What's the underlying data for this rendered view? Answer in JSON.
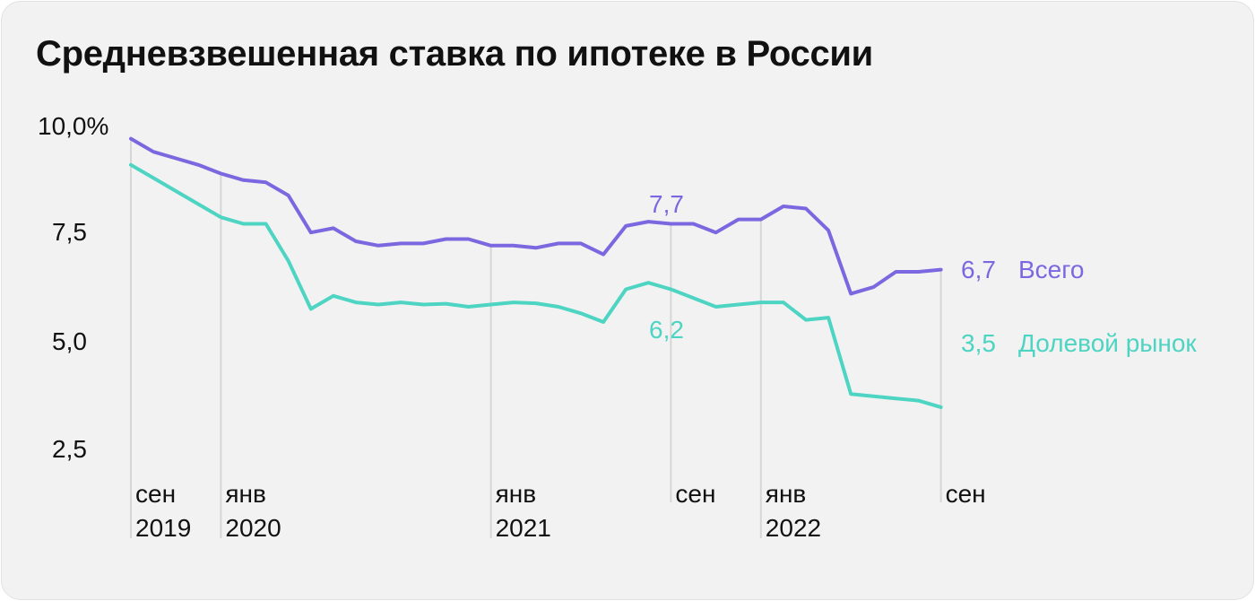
{
  "title": "Средневзвешенная ставка по ипотеке в России",
  "chart_data": {
    "type": "line",
    "title": "Средневзвешенная ставка по ипотеке в России",
    "xlabel": "",
    "ylabel": "",
    "ylim": [
      2.5,
      10.0
    ],
    "y_ticks": [
      "10,0%",
      "7,5",
      "5,0",
      "2,5"
    ],
    "y_tick_values": [
      10.0,
      7.5,
      5.0,
      2.5
    ],
    "grid": false,
    "x": [
      "2019-09",
      "2019-10",
      "2019-11",
      "2019-12",
      "2020-01",
      "2020-02",
      "2020-03",
      "2020-04",
      "2020-05",
      "2020-06",
      "2020-07",
      "2020-08",
      "2020-09",
      "2020-10",
      "2020-11",
      "2020-12",
      "2021-01",
      "2021-02",
      "2021-03",
      "2021-04",
      "2021-05",
      "2021-06",
      "2021-07",
      "2021-08",
      "2021-09",
      "2021-10",
      "2021-11",
      "2021-12",
      "2022-01",
      "2022-02",
      "2022-03",
      "2022-04",
      "2022-05",
      "2022-06",
      "2022-07",
      "2022-08",
      "2022-09"
    ],
    "x_tick_labels": [
      {
        "x": "2019-09",
        "lines": [
          "сен",
          "2019"
        ]
      },
      {
        "x": "2020-01",
        "lines": [
          "янв",
          "2020"
        ]
      },
      {
        "x": "2021-01",
        "lines": [
          "янв",
          "2021"
        ]
      },
      {
        "x": "2021-09",
        "lines": [
          "сен"
        ]
      },
      {
        "x": "2022-01",
        "lines": [
          "янв",
          "2022"
        ]
      },
      {
        "x": "2022-09",
        "lines": [
          "сен"
        ]
      }
    ],
    "series": [
      {
        "name": "Всего",
        "color": "#7b68e0",
        "values": [
          9.7,
          9.4,
          9.25,
          9.1,
          8.9,
          8.75,
          8.7,
          8.4,
          7.55,
          7.65,
          7.35,
          7.25,
          7.3,
          7.3,
          7.4,
          7.4,
          7.25,
          7.25,
          7.2,
          7.3,
          7.3,
          7.05,
          7.7,
          7.8,
          7.75,
          7.75,
          7.55,
          7.85,
          7.85,
          8.15,
          8.1,
          7.6,
          6.15,
          6.3,
          6.65,
          6.65,
          6.7
        ],
        "end_value_label": "6,7",
        "annotation": {
          "x": "2021-09",
          "label": "7,7"
        }
      },
      {
        "name": "Долевой рынок",
        "color": "#4dd4c2",
        "values": [
          9.1,
          8.8,
          8.5,
          8.2,
          7.9,
          7.75,
          7.75,
          6.9,
          5.8,
          6.1,
          5.95,
          5.9,
          5.95,
          5.9,
          5.92,
          5.85,
          5.9,
          5.95,
          5.93,
          5.85,
          5.7,
          5.5,
          6.25,
          6.4,
          6.25,
          6.05,
          5.85,
          5.9,
          5.95,
          5.95,
          5.55,
          5.6,
          3.85,
          3.8,
          3.75,
          3.7,
          3.55
        ],
        "end_value_label": "3,5",
        "annotation": {
          "x": "2021-09",
          "label": "6,2"
        }
      }
    ]
  }
}
